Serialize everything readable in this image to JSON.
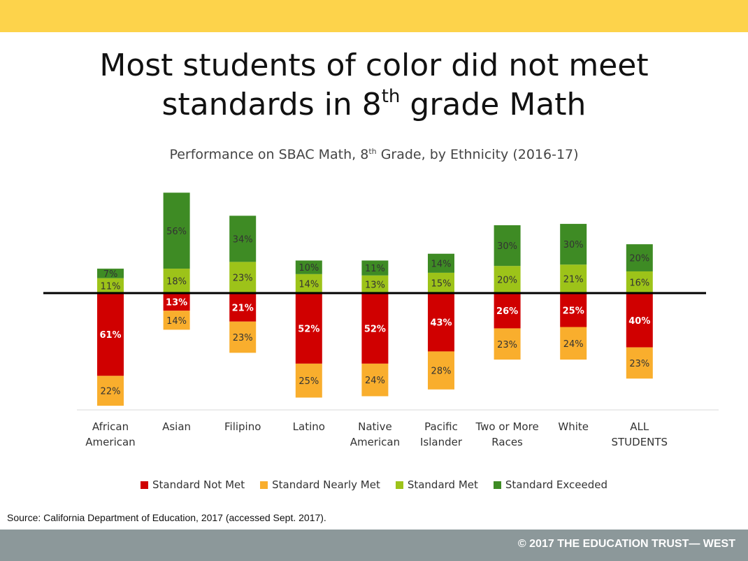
{
  "header": {
    "title_line1": "Most students of color did not meet",
    "title_line2_pre": "standards in 8",
    "title_line2_sup": "th",
    "title_line2_post": " grade Math"
  },
  "subtitle": {
    "pre": "Performance on SBAC Math, 8",
    "sup": "th",
    "post": " Grade, by Ethnicity (2016-17)"
  },
  "source": "Source: California Department of Education, 2017 (accessed Sept. 2017).",
  "footer": {
    "text": "© 2017 THE EDUCATION TRUST— WEST"
  },
  "colors": {
    "top_bar": "#FDD34B",
    "footer": "#8C989A",
    "not_met": "#D00000",
    "nearly_met": "#F9AE2D",
    "met": "#9DC319",
    "exceeded": "#3E8B24"
  },
  "chart_data": {
    "type": "bar",
    "stacking": "diverging",
    "title": "Performance on SBAC Math, 8th Grade, by Ethnicity (2016-17)",
    "categories": [
      [
        "African",
        "American"
      ],
      [
        "Asian"
      ],
      [
        "Filipino"
      ],
      [
        "Latino"
      ],
      [
        "Native",
        "American"
      ],
      [
        "Pacific",
        "Islander"
      ],
      [
        "Two or More",
        "Races"
      ],
      [
        "White"
      ],
      [
        "ALL",
        "STUDENTS"
      ]
    ],
    "series": [
      {
        "name": "Standard Not Met",
        "color": "#D00000",
        "direction": "below",
        "values": [
          61,
          13,
          21,
          52,
          52,
          43,
          26,
          25,
          40
        ]
      },
      {
        "name": "Standard Nearly Met",
        "color": "#F9AE2D",
        "direction": "below",
        "values": [
          22,
          14,
          23,
          25,
          24,
          28,
          23,
          24,
          23
        ]
      },
      {
        "name": "Standard Met",
        "color": "#9DC319",
        "direction": "above",
        "values": [
          11,
          18,
          23,
          14,
          13,
          15,
          20,
          21,
          16
        ]
      },
      {
        "name": "Standard Exceeded",
        "color": "#3E8B24",
        "direction": "above",
        "values": [
          7,
          56,
          34,
          10,
          11,
          14,
          30,
          30,
          20
        ]
      }
    ],
    "legend_position": "bottom",
    "grid": false
  }
}
